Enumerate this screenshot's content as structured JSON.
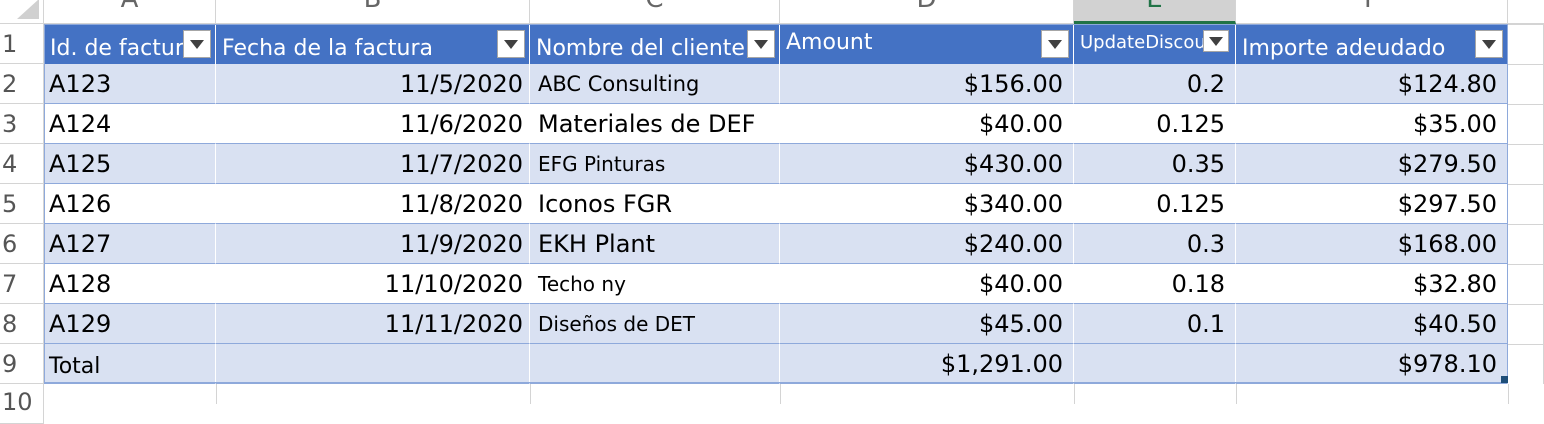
{
  "sheet": {
    "column_headers": [
      "A",
      "B",
      "C",
      "D",
      "E",
      "F"
    ],
    "selected_column": "E",
    "row_numbers": [
      "1",
      "2",
      "3",
      "4",
      "5",
      "6",
      "7",
      "8",
      "9",
      "10"
    ]
  },
  "table": {
    "header_color": "#4472c4",
    "band_color": "#d9e1f2",
    "columns": [
      "Id. de factura",
      "Fecha de la factura",
      "Nombre del cliente",
      "Amount",
      "UpdateDiscount",
      "Importe adeudado"
    ],
    "rows": [
      {
        "id": "A123",
        "date": "11/5/2020",
        "client": "ABC Consulting",
        "amount": "$156.00",
        "discount": "0.2",
        "due": "$124.80"
      },
      {
        "id": "A124",
        "date": "11/6/2020",
        "client": "Materiales de DEF",
        "amount": "$40.00",
        "discount": "0.125",
        "due": "$35.00"
      },
      {
        "id": "A125",
        "date": "11/7/2020",
        "client": "EFG Pinturas",
        "amount": "$430.00",
        "discount": "0.35",
        "due": "$279.50"
      },
      {
        "id": "A126",
        "date": "11/8/2020",
        "client": "Iconos FGR",
        "amount": "$340.00",
        "discount": "0.125",
        "due": "$297.50"
      },
      {
        "id": "A127",
        "date": "11/9/2020",
        "client": "EKH Plant",
        "amount": "$240.00",
        "discount": "0.3",
        "due": "$168.00"
      },
      {
        "id": "A128",
        "date": "11/10/2020",
        "client": "Techo ny",
        "amount": "$40.00",
        "discount": "0.18",
        "due": "$32.80"
      },
      {
        "id": "A129",
        "date": "11/11/2020",
        "client": "Diseños de DET",
        "amount": "$45.00",
        "discount": "0.1",
        "due": "$40.50"
      }
    ],
    "total_row": {
      "label": "Total",
      "amount": "$1,291.00",
      "due": "$978.10"
    }
  },
  "icons": {
    "filter": "dropdown-filter-icon",
    "corner": "select-all-triangle-icon"
  }
}
